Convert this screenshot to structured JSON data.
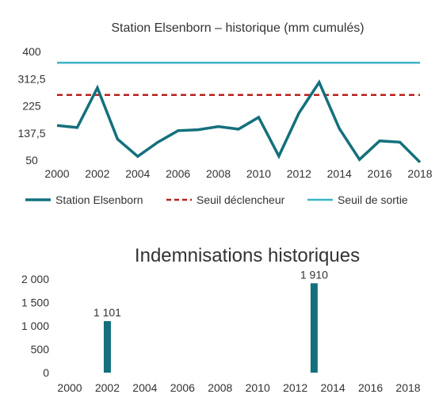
{
  "chart_data": [
    {
      "type": "line",
      "title": "Station Elsenborn – historique (mm cumulés)",
      "xlabel": "",
      "ylabel": "",
      "x": [
        2000,
        2001,
        2002,
        2003,
        2004,
        2005,
        2006,
        2007,
        2008,
        2009,
        2010,
        2011,
        2012,
        2013,
        2014,
        2015,
        2016,
        2017,
        2018
      ],
      "x_ticks": [
        "2000",
        "2002",
        "2004",
        "2006",
        "2008",
        "2010",
        "2012",
        "2014",
        "2016",
        "2018"
      ],
      "y_ticks": [
        "400",
        "312,5",
        "225",
        "137,5",
        "50"
      ],
      "ylim": [
        50,
        400
      ],
      "xlim": [
        2000,
        2018
      ],
      "grid": false,
      "legend_position": "bottom",
      "series": [
        {
          "name": "Station Elsenborn",
          "color": "#13707c",
          "style": "solid",
          "values": [
            162,
            155,
            283,
            118,
            62,
            108,
            145,
            148,
            158,
            150,
            188,
            63,
            202,
            301,
            152,
            52,
            112,
            108,
            43
          ]
        },
        {
          "name": "Seuil déclencheur",
          "color": "#b8211d",
          "style": "dashed",
          "values": [
            260,
            260,
            260,
            260,
            260,
            260,
            260,
            260,
            260,
            260,
            260,
            260,
            260,
            260,
            260,
            260,
            260,
            260,
            260
          ]
        },
        {
          "name": "Seuil de sortie",
          "color": "#3ab3c3",
          "style": "solid",
          "values": [
            364,
            364,
            364,
            364,
            364,
            364,
            364,
            364,
            364,
            364,
            364,
            364,
            364,
            364,
            364,
            364,
            364,
            364,
            364
          ]
        }
      ]
    },
    {
      "type": "bar",
      "title": "Indemnisations historiques",
      "xlabel": "",
      "ylabel": "",
      "x": [
        2002,
        2013
      ],
      "values": [
        1101,
        1910
      ],
      "data_labels": [
        "1 101",
        "1 910"
      ],
      "x_ticks": [
        "2000",
        "2002",
        "2004",
        "2006",
        "2008",
        "2010",
        "2012",
        "2014",
        "2016",
        "2018"
      ],
      "y_ticks": [
        "2 000",
        "1 500",
        "1 000",
        "500",
        "0"
      ],
      "ylim": [
        0,
        2000
      ],
      "xlim": [
        2000,
        2018
      ],
      "grid": false,
      "color": "#13707c"
    }
  ]
}
